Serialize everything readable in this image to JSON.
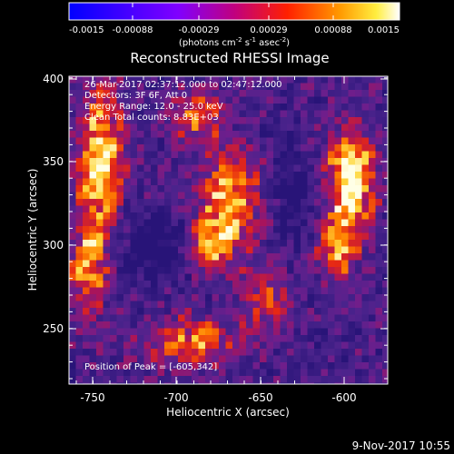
{
  "colorbar": {
    "ticks": [
      "-0.0015",
      "-0.00088",
      "-0.00029",
      "0.00029",
      "0.00088",
      "0.0015"
    ],
    "units_prefix": "(photons cm",
    "units_exp1": "-2",
    "units_mid1": " s",
    "units_exp2": "-1",
    "units_mid2": " asec",
    "units_exp3": "-2",
    "units_suffix": ")"
  },
  "image": {
    "title": "Reconstructed RHESSI Image",
    "info_lines": [
      "26-Mar-2017 02:37:12.000 to 02:47:12.000",
      "Detectors: 3F 6F, Att 0",
      "Energy Range: 12.0 - 25.0 keV",
      "Clean    Total counts: 8.83E+03"
    ],
    "peak_label": "Position of Peak = [-605,342]"
  },
  "axes": {
    "xlabel": "Heliocentric X (arcsec)",
    "ylabel": "Heliocentric Y (arcsec)",
    "xticks": [
      "-750",
      "-700",
      "-650",
      "-600"
    ],
    "yticks": [
      "250",
      "300",
      "350",
      "400"
    ]
  },
  "footer": {
    "timestamp": "9-Nov-2017 10:55"
  }
}
